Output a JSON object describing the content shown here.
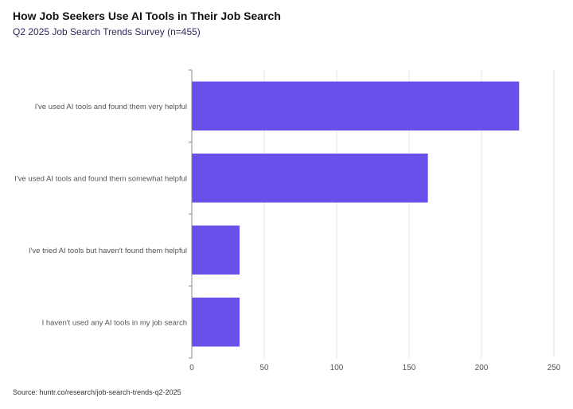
{
  "header": {
    "title": "How Job Seekers Use AI Tools in Their Job Search",
    "subtitle": "Q2 2025 Job Search Trends Survey (n=455)"
  },
  "footer": {
    "source": "Source: huntr.co/research/job-search-trends-q2-2025"
  },
  "colors": {
    "bar": "#6a50ea",
    "grid": "#e6e6e6",
    "axis": "#888888"
  },
  "chart_data": {
    "type": "bar",
    "orientation": "horizontal",
    "title": "How Job Seekers Use AI Tools in Their Job Search",
    "subtitle": "Q2 2025 Job Search Trends Survey (n=455)",
    "categories": [
      "I've used AI tools and found them very helpful",
      "I've used AI tools and found them somewhat helpful",
      "I've tried AI tools but haven't found them helpful",
      "I haven't used any AI tools in my job search"
    ],
    "values": [
      226,
      163,
      33,
      33
    ],
    "xlim": [
      0,
      250
    ],
    "xticks": [
      0,
      50,
      100,
      150,
      200,
      250
    ],
    "grid": true,
    "xlabel": "",
    "ylabel": ""
  }
}
